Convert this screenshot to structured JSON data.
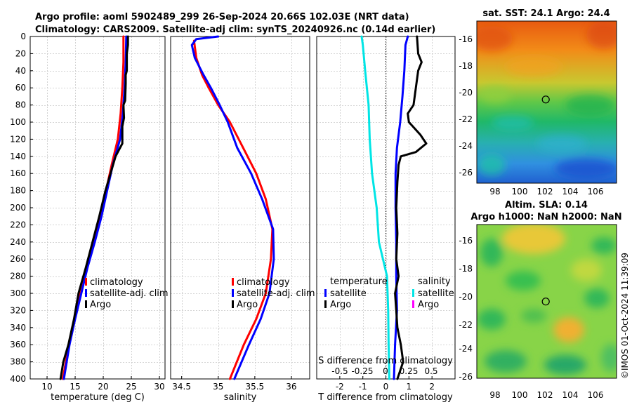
{
  "header": {
    "line1": "Argo profile: aoml 5902489_299 26-Sep-2024 20.66S 102.03E (NRT data)",
    "line2": "Climatology: CARS2009. Satellite-adj clim: synTS_20240926.nc (0.14d earlier)"
  },
  "watermark": "©IMOS 01-Oct-2024 11:39:09",
  "colors": {
    "climatology": "#ff0000",
    "satellite": "#0000ff",
    "argo": "#000000",
    "salinity_satellite": "#00e5e5",
    "salinity_argo": "#ff00ff",
    "gridline": "#c8c8c8"
  },
  "chart_data": [
    {
      "id": "temperature",
      "type": "line",
      "xlabel": "temperature (deg C)",
      "ylabel": "",
      "xlim": [
        7,
        31
      ],
      "ylim": [
        400,
        0
      ],
      "xticks": [
        10,
        15,
        20,
        25,
        30
      ],
      "yticks": [
        0,
        20,
        40,
        60,
        80,
        100,
        120,
        140,
        160,
        180,
        200,
        220,
        240,
        260,
        280,
        300,
        320,
        340,
        360,
        380,
        400
      ],
      "series": [
        {
          "name": "climatology",
          "color": "#ff0000",
          "points": [
            [
              23.6,
              0
            ],
            [
              23.6,
              30
            ],
            [
              23.4,
              60
            ],
            [
              23.1,
              90
            ],
            [
              22.6,
              120
            ],
            [
              21.5,
              150
            ],
            [
              20.5,
              180
            ],
            [
              19.5,
              210
            ],
            [
              18.3,
              240
            ],
            [
              17.0,
              270
            ],
            [
              15.9,
              300
            ],
            [
              14.9,
              330
            ],
            [
              13.9,
              360
            ],
            [
              12.8,
              400
            ]
          ]
        },
        {
          "name": "satellite-adj. clim",
          "color": "#0000ff",
          "points": [
            [
              24.1,
              0
            ],
            [
              24.0,
              30
            ],
            [
              23.8,
              60
            ],
            [
              23.5,
              90
            ],
            [
              23.0,
              120
            ],
            [
              21.7,
              150
            ],
            [
              20.7,
              180
            ],
            [
              19.7,
              210
            ],
            [
              18.5,
              240
            ],
            [
              17.2,
              270
            ],
            [
              16.1,
              300
            ],
            [
              15.0,
              330
            ],
            [
              14.0,
              360
            ],
            [
              13.0,
              400
            ]
          ]
        },
        {
          "name": "Argo",
          "color": "#000000",
          "points": [
            [
              24.4,
              0
            ],
            [
              24.4,
              10
            ],
            [
              24.2,
              20
            ],
            [
              24.2,
              40
            ],
            [
              24.0,
              45
            ],
            [
              24.0,
              55
            ],
            [
              23.9,
              75
            ],
            [
              23.6,
              80
            ],
            [
              23.7,
              95
            ],
            [
              23.4,
              105
            ],
            [
              23.4,
              125
            ],
            [
              22.2,
              140
            ],
            [
              21.3,
              160
            ],
            [
              20.4,
              180
            ],
            [
              19.3,
              210
            ],
            [
              18.1,
              240
            ],
            [
              16.9,
              270
            ],
            [
              15.6,
              300
            ],
            [
              14.8,
              330
            ],
            [
              13.8,
              360
            ],
            [
              12.9,
              380
            ],
            [
              12.4,
              400
            ]
          ]
        }
      ],
      "legend": {
        "position": "bottom-right",
        "entries": [
          "climatology",
          "satellite-adj. clim",
          "Argo"
        ]
      }
    },
    {
      "id": "salinity",
      "type": "line",
      "xlabel": "salinity",
      "ylabel": "",
      "xlim": [
        34.35,
        36.25
      ],
      "ylim": [
        400,
        0
      ],
      "xticks": [
        34.5,
        35,
        35.5,
        36
      ],
      "xticklabels": [
        "34.5",
        "35",
        "35.5",
        "36"
      ],
      "series": [
        {
          "name": "climatology",
          "color": "#ff0000",
          "points": [
            [
              34.67,
              5
            ],
            [
              34.7,
              25
            ],
            [
              34.78,
              45
            ],
            [
              34.87,
              60
            ],
            [
              35.0,
              80
            ],
            [
              35.16,
              100
            ],
            [
              35.34,
              130
            ],
            [
              35.52,
              160
            ],
            [
              35.65,
              190
            ],
            [
              35.74,
              225
            ],
            [
              35.72,
              260
            ],
            [
              35.65,
              300
            ],
            [
              35.52,
              330
            ],
            [
              35.35,
              360
            ],
            [
              35.16,
              400
            ]
          ]
        },
        {
          "name": "satellite-adj. clim",
          "color": "#0000ff",
          "points": [
            [
              35.0,
              0
            ],
            [
              34.7,
              3
            ],
            [
              34.64,
              10
            ],
            [
              34.68,
              25
            ],
            [
              34.8,
              45
            ],
            [
              34.9,
              60
            ],
            [
              35.02,
              80
            ],
            [
              35.13,
              100
            ],
            [
              35.26,
              130
            ],
            [
              35.45,
              160
            ],
            [
              35.6,
              190
            ],
            [
              35.75,
              225
            ],
            [
              35.76,
              260
            ],
            [
              35.7,
              300
            ],
            [
              35.58,
              330
            ],
            [
              35.42,
              360
            ],
            [
              35.22,
              400
            ]
          ]
        }
      ],
      "legend": {
        "position": "bottom-right",
        "entries": [
          "climatology",
          "satellite-adj. clim",
          "Argo"
        ]
      }
    },
    {
      "id": "difference",
      "type": "line",
      "xlabel": "T difference from climatology",
      "xlabel_top": "S difference from climatology",
      "xlim": [
        -3,
        3
      ],
      "ylim": [
        400,
        0
      ],
      "xticks": [
        -2,
        -1,
        0,
        1,
        2
      ],
      "s_ticks": [
        "-0.5",
        "-0.25",
        "0",
        "0.25",
        "0.5"
      ],
      "series": [
        {
          "name": "T satellite",
          "color": "#0000ff",
          "points": [
            [
              0.95,
              0
            ],
            [
              0.85,
              10
            ],
            [
              0.8,
              40
            ],
            [
              0.72,
              70
            ],
            [
              0.62,
              100
            ],
            [
              0.48,
              130
            ],
            [
              0.42,
              160
            ],
            [
              0.42,
              200
            ],
            [
              0.45,
              240
            ],
            [
              0.45,
              280
            ],
            [
              0.48,
              320
            ],
            [
              0.4,
              360
            ],
            [
              0.35,
              400
            ]
          ]
        },
        {
          "name": "T Argo",
          "color": "#000000",
          "points": [
            [
              1.35,
              0
            ],
            [
              1.4,
              20
            ],
            [
              1.55,
              30
            ],
            [
              1.4,
              40
            ],
            [
              1.3,
              60
            ],
            [
              1.2,
              80
            ],
            [
              0.95,
              90
            ],
            [
              1.0,
              100
            ],
            [
              1.5,
              115
            ],
            [
              1.75,
              125
            ],
            [
              1.3,
              135
            ],
            [
              0.65,
              140
            ],
            [
              0.55,
              150
            ],
            [
              0.5,
              170
            ],
            [
              0.45,
              200
            ],
            [
              0.5,
              230
            ],
            [
              0.45,
              260
            ],
            [
              0.55,
              280
            ],
            [
              0.4,
              300
            ],
            [
              0.45,
              320
            ],
            [
              0.5,
              340
            ],
            [
              0.65,
              360
            ],
            [
              0.75,
              380
            ],
            [
              0.5,
              400
            ]
          ]
        },
        {
          "name": "S satellite",
          "color": "#00e5e5",
          "points": [
            [
              -1.05,
              0
            ],
            [
              -1.0,
              10
            ],
            [
              -0.9,
              40
            ],
            [
              -0.75,
              80
            ],
            [
              -0.7,
              120
            ],
            [
              -0.6,
              160
            ],
            [
              -0.4,
              200
            ],
            [
              -0.3,
              240
            ],
            [
              0.05,
              280
            ],
            [
              0.1,
              320
            ],
            [
              0.12,
              360
            ],
            [
              0.15,
              400
            ]
          ]
        }
      ],
      "legend": {
        "left_title": "temperature",
        "left_entries": [
          "satellite",
          "Argo"
        ],
        "right_title": "salinity",
        "right_entries": [
          "satellite",
          "Argo"
        ]
      }
    }
  ],
  "maps": [
    {
      "id": "sst-map",
      "title": "sat. SST: 24.1 Argo: 24.4",
      "type": "heatmap",
      "xticks": [
        "98",
        "100",
        "102",
        "104",
        "106"
      ],
      "yticks": [
        "-16",
        "-18",
        "-20",
        "-22",
        "-24",
        "-26"
      ],
      "marker": {
        "lon": 102.03,
        "lat": -20.66
      }
    },
    {
      "id": "sla-map",
      "title_line1": "Altim. SLA: 0.14",
      "title_line2": "Argo h1000: NaN h2000: NaN",
      "type": "heatmap",
      "xticks": [
        "98",
        "100",
        "102",
        "104",
        "106"
      ],
      "yticks": [
        "-16",
        "-18",
        "-20",
        "-22",
        "-24",
        "-26"
      ],
      "marker": {
        "lon": 102.03,
        "lat": -20.66
      }
    }
  ]
}
